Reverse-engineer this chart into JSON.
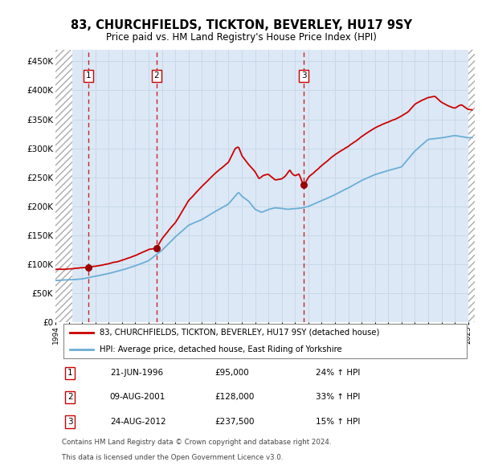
{
  "title": "83, CHURCHFIELDS, TICKTON, BEVERLEY, HU17 9SY",
  "subtitle": "Price paid vs. HM Land Registry's House Price Index (HPI)",
  "ylabel_ticks": [
    "£0",
    "£50K",
    "£100K",
    "£150K",
    "£200K",
    "£250K",
    "£300K",
    "£350K",
    "£400K",
    "£450K"
  ],
  "ytick_values": [
    0,
    50000,
    100000,
    150000,
    200000,
    250000,
    300000,
    350000,
    400000,
    450000
  ],
  "ylim": [
    0,
    470000
  ],
  "xlim_start": 1994.0,
  "xlim_end": 2025.5,
  "sale_dates": [
    1996.47,
    2001.6,
    2012.65
  ],
  "sale_prices": [
    95000,
    128000,
    237500
  ],
  "sale_labels": [
    "1",
    "2",
    "3"
  ],
  "legend_line1": "83, CHURCHFIELDS, TICKTON, BEVERLEY, HU17 9SY (detached house)",
  "legend_line2": "HPI: Average price, detached house, East Riding of Yorkshire",
  "table_data": [
    [
      "1",
      "21-JUN-1996",
      "£95,000",
      "24% ↑ HPI"
    ],
    [
      "2",
      "09-AUG-2001",
      "£128,000",
      "33% ↑ HPI"
    ],
    [
      "3",
      "24-AUG-2012",
      "£237,500",
      "15% ↑ HPI"
    ]
  ],
  "footer1": "Contains HM Land Registry data © Crown copyright and database right 2024.",
  "footer2": "This data is licensed under the Open Government Licence v3.0.",
  "hpi_color": "#6baed6",
  "price_color": "#cc0000",
  "sale_marker_color": "#990000",
  "grid_color": "#c8d8e8",
  "background_color": "#dce8f5",
  "hatch_left_end": 1995.25,
  "hatch_right_start": 2025.0
}
